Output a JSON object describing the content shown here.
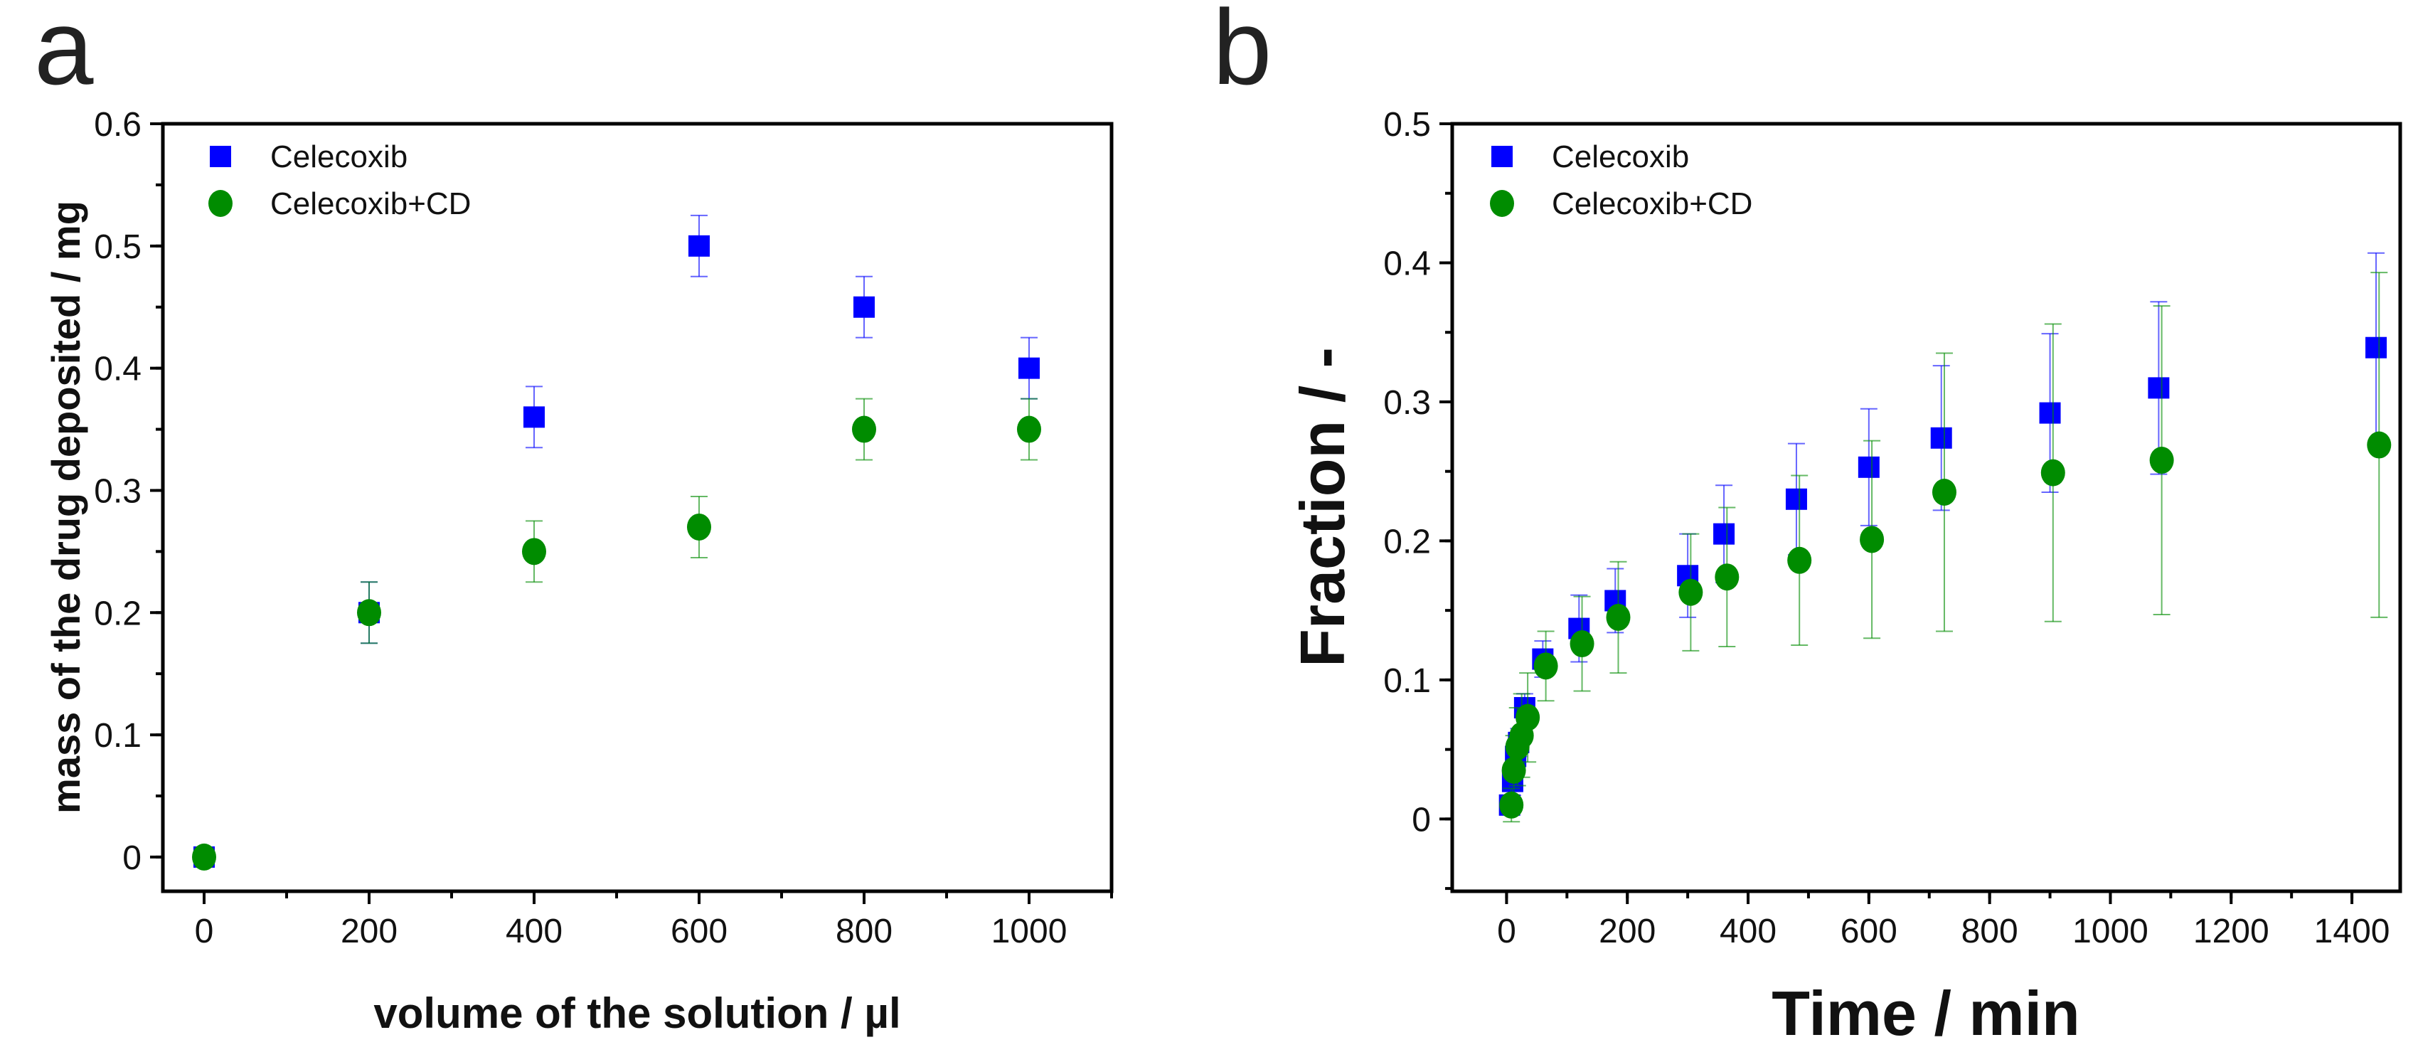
{
  "chart_data": [
    {
      "type": "scatter",
      "panel_label": "a",
      "xlabel": "volume of the solution / µl",
      "ylabel": "mass of the drug deposited / mg",
      "xlim": [
        -50,
        1100
      ],
      "ylim": [
        -0.028,
        0.6
      ],
      "xticks": [
        0,
        200,
        400,
        600,
        800,
        1000
      ],
      "yticks": [
        0,
        0.1,
        0.2,
        0.3,
        0.4,
        0.5,
        0.6
      ],
      "xtick_labels": [
        "0",
        "200",
        "400",
        "600",
        "800",
        "1000"
      ],
      "ytick_labels": [
        "0",
        "0.1",
        "0.2",
        "0.3",
        "0.4",
        "0.5",
        "0.6"
      ],
      "grid": false,
      "legend_position": "top-left",
      "series": [
        {
          "name": "Celecoxib",
          "marker": "square",
          "color": "#0000ff",
          "x": [
            0,
            200,
            400,
            600,
            800,
            1000
          ],
          "y": [
            0,
            0.2,
            0.36,
            0.5,
            0.45,
            0.4
          ],
          "err": [
            0,
            0.025,
            0.025,
            0.025,
            0.025,
            0.025
          ]
        },
        {
          "name": "Celecoxib+CD",
          "marker": "circle",
          "color": "#008c00",
          "x": [
            0,
            200,
            400,
            600,
            800,
            1000
          ],
          "y": [
            0,
            0.2,
            0.25,
            0.27,
            0.35,
            0.35
          ],
          "err": [
            0,
            0.025,
            0.025,
            0.025,
            0.025,
            0.025
          ]
        }
      ]
    },
    {
      "type": "scatter",
      "panel_label": "b",
      "xlabel": "Time / min",
      "ylabel": "Fraction / -",
      "xlim": [
        -90,
        1480
      ],
      "ylim": [
        -0.052,
        0.5
      ],
      "xticks": [
        0,
        200,
        400,
        600,
        800,
        1000,
        1200,
        1400
      ],
      "yticks": [
        0,
        0.1,
        0.2,
        0.3,
        0.4,
        0.5
      ],
      "xtick_labels": [
        "0",
        "200",
        "400",
        "600",
        "800",
        "1000",
        "1200",
        "1400"
      ],
      "ytick_labels": [
        "0",
        "0.1",
        "0.2",
        "0.3",
        "0.4",
        "0.5"
      ],
      "grid": false,
      "legend_position": "top-left",
      "series": [
        {
          "name": "Celecoxib",
          "marker": "square",
          "color": "#0000ff",
          "x": [
            5,
            10,
            15,
            20,
            30,
            60,
            120,
            180,
            300,
            360,
            480,
            600,
            720,
            900,
            1080,
            1440
          ],
          "y": [
            0.01,
            0.027,
            0.045,
            0.055,
            0.08,
            0.115,
            0.137,
            0.157,
            0.175,
            0.205,
            0.23,
            0.253,
            0.274,
            0.292,
            0.31,
            0.339
          ],
          "err": [
            0.005,
            0.01,
            0.01,
            0.01,
            0.01,
            0.013,
            0.024,
            0.023,
            0.03,
            0.035,
            0.04,
            0.042,
            0.052,
            0.057,
            0.062,
            0.068
          ]
        },
        {
          "name": "Celecoxib+CD",
          "marker": "circle",
          "color": "#008c00",
          "x": [
            8,
            12,
            18,
            25,
            35,
            65,
            125,
            185,
            305,
            365,
            485,
            605,
            725,
            905,
            1085,
            1445
          ],
          "y": [
            0.01,
            0.035,
            0.052,
            0.06,
            0.073,
            0.11,
            0.126,
            0.145,
            0.163,
            0.174,
            0.186,
            0.201,
            0.235,
            0.249,
            0.258,
            0.269
          ],
          "err": [
            0.012,
            0.025,
            0.028,
            0.03,
            0.032,
            0.025,
            0.034,
            0.04,
            0.042,
            0.05,
            0.061,
            0.071,
            0.1,
            0.107,
            0.111,
            0.124
          ]
        }
      ]
    }
  ]
}
